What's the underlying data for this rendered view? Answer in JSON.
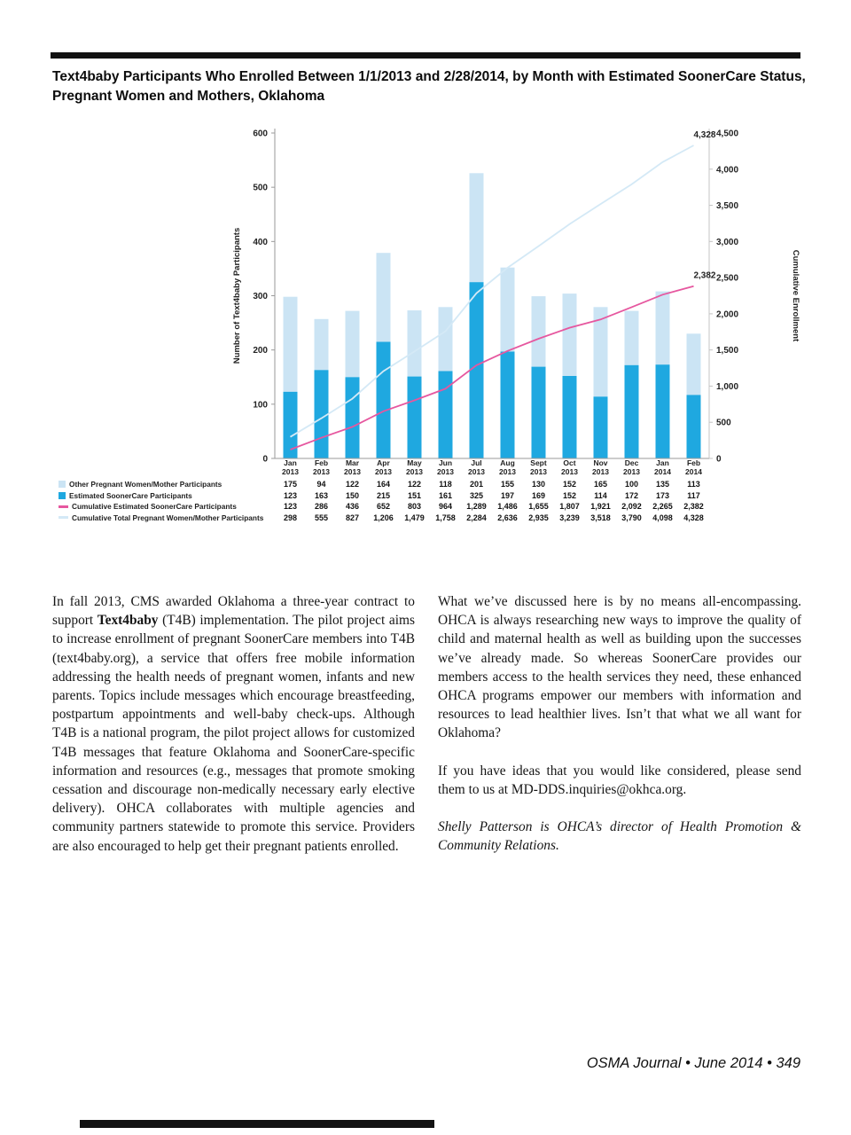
{
  "page": {
    "title_line1": "Text4baby Participants Who Enrolled Between 1/1/2013 and 2/28/2014, by Month with Estimated SoonerCare Status,",
    "title_line2": "Pregnant Women and Mothers, Oklahoma",
    "footer": "OSMA Journal • June 2014 • 349"
  },
  "chart_data": {
    "type": "bar",
    "subtype": "stacked-bars-with-cumulative-lines",
    "title": "Text4baby Participants Who Enrolled Between 1/1/2013 and 2/28/2014, by Month with Estimated SoonerCare Status, Pregnant Women and Mothers, Oklahoma",
    "categories": [
      "Jan 2013",
      "Feb 2013",
      "Mar 2013",
      "Apr 2013",
      "May 2013",
      "Jun 2013",
      "Jul 2013",
      "Aug 2013",
      "Sept 2013",
      "Oct 2013",
      "Nov 2013",
      "Dec 2013",
      "Jan 2014",
      "Feb 2014"
    ],
    "left_axis": {
      "label": "Number of Text4baby Participants",
      "min": 0,
      "max": 600,
      "step": 100
    },
    "right_axis": {
      "label": "Cumulative Enrollment",
      "min": 0,
      "max": 4500,
      "step": 500
    },
    "series": [
      {
        "name": "Other Pregnant Women/Mother Participants",
        "type": "bar",
        "stack": true,
        "color": "#cbe4f4",
        "values": [
          175,
          94,
          122,
          164,
          122,
          118,
          201,
          155,
          130,
          152,
          165,
          100,
          135,
          113
        ]
      },
      {
        "name": "Estimated SoonerCare Participants",
        "type": "bar",
        "stack": true,
        "color": "#1fa8e0",
        "values": [
          123,
          163,
          150,
          215,
          151,
          161,
          325,
          197,
          169,
          152,
          114,
          172,
          173,
          117
        ]
      },
      {
        "name": "Cumulative Estimated  SoonerCare Participants",
        "type": "line",
        "axis": "right",
        "color": "#e6579f",
        "values": [
          123,
          286,
          436,
          652,
          803,
          964,
          1289,
          1486,
          1655,
          1807,
          1921,
          2092,
          2265,
          2382
        ]
      },
      {
        "name": "Cumulative Total Pregnant Women/Mother Participants",
        "type": "line",
        "axis": "right",
        "color": "#d4e9f6",
        "values": [
          298,
          555,
          827,
          1206,
          1479,
          1758,
          2284,
          2636,
          2935,
          3239,
          3518,
          3790,
          4098,
          4328
        ]
      }
    ],
    "annotations": [
      {
        "text": "4,328",
        "series_index": 3,
        "point_index": 13
      },
      {
        "text": "2,382",
        "series_index": 2,
        "point_index": 13
      }
    ],
    "grid": false,
    "legend_position": "bottom-left-as-table-row-labels"
  },
  "article": {
    "left": {
      "p1_before": "In fall 2013, CMS awarded Oklahoma a three-year contract to support ",
      "p1_bold": "Text4baby",
      "p1_after": " (T4B) implementation. The pilot project aims to increase enrollment of pregnant SoonerCare members into T4B (text4baby.org), a service that offers free mobile information addressing the health needs of pregnant women, infants and new parents. Topics include messages which encourage breastfeeding, postpartum appointments and well-baby check-ups. Although T4B is a national program, the pilot project allows for customized T4B messages that feature Oklahoma and SoonerCare-specific information and resources (e.g., messages that promote smoking cessation and discourage non-medically necessary early elective delivery). OHCA collaborates with multiple agencies and community partners statewide to promote this service. Providers are also encouraged to help get their pregnant patients enrolled."
    },
    "right": {
      "p1": "What we’ve discussed here is by no means all-encompassing. OHCA is always researching new ways to improve the quality of child and maternal health as well as building upon the successes we’ve already made. So whereas SoonerCare provides our members access to the health services they need, these enhanced OHCA programs empower our members with information and resources to lead healthier lives. Isn’t that what we all want for Oklahoma?",
      "p2": "If you have ideas that you would like considered, please send them to us at MD-DDS.inquiries@okhca.org.",
      "byline": "Shelly Patterson is OHCA’s director of Health Promotion & Community Relations."
    }
  }
}
